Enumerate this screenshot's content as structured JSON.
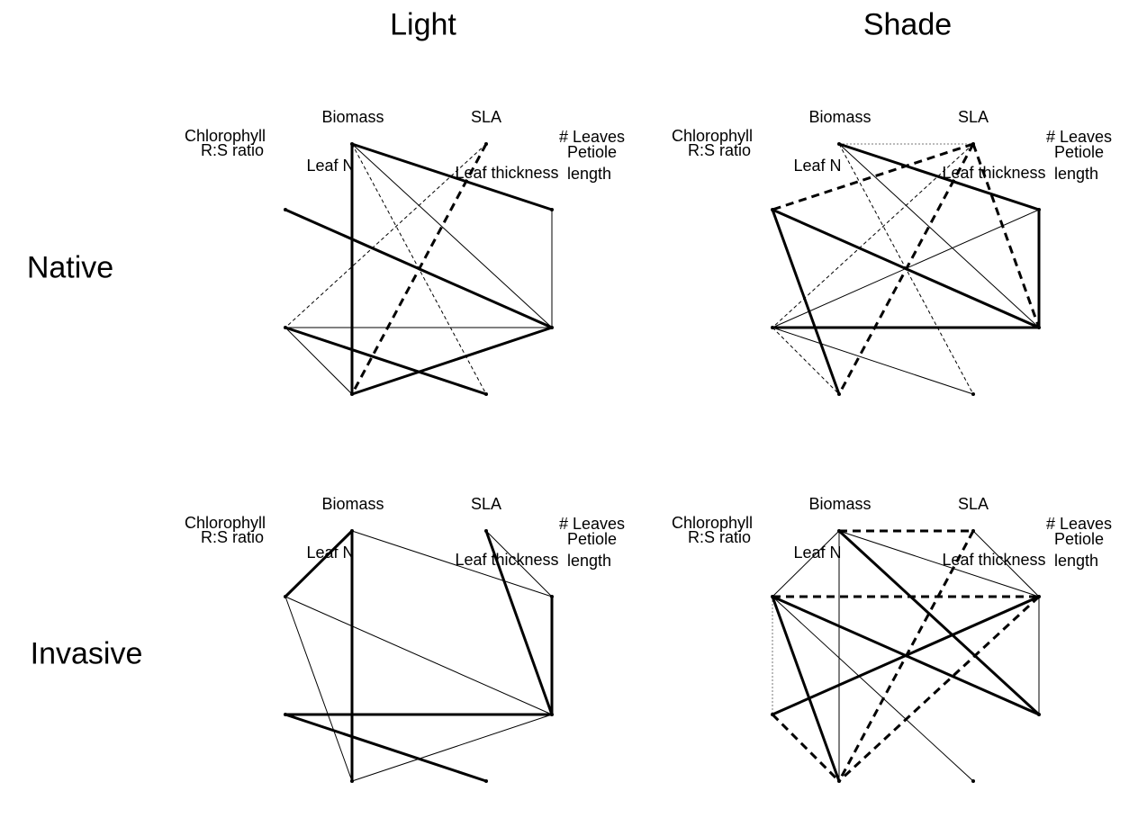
{
  "columns": [
    "Light",
    "Shade"
  ],
  "rows": [
    "Native",
    "Invasive"
  ],
  "panels": [
    {
      "nodes": [
        "Biomass",
        "SLA",
        "# Leaves",
        "Petiole length",
        "Leaf thickness",
        "Leaf N",
        "Chlorophyll",
        "R:S ratio"
      ]
    },
    {
      "nodes": [
        "Biomass",
        "SLA",
        "#  Leaves",
        "Petiole length",
        "Leaf thickness",
        "Leaf N",
        "Chlorophyll",
        "R:S ratio"
      ]
    },
    {
      "nodes": [
        "Biomass",
        "SLA",
        "# Leaves",
        "Petiole length",
        "Leaf thickness",
        "Leaf N",
        "Chlorophyll",
        "R:S ratio"
      ]
    },
    {
      "nodes": [
        "Biomass",
        "SLA",
        "# Leaves",
        "Petiole length",
        "Leaf thickness",
        "Leaf N",
        "Chlorophyll",
        "R:S ratio"
      ]
    }
  ]
}
